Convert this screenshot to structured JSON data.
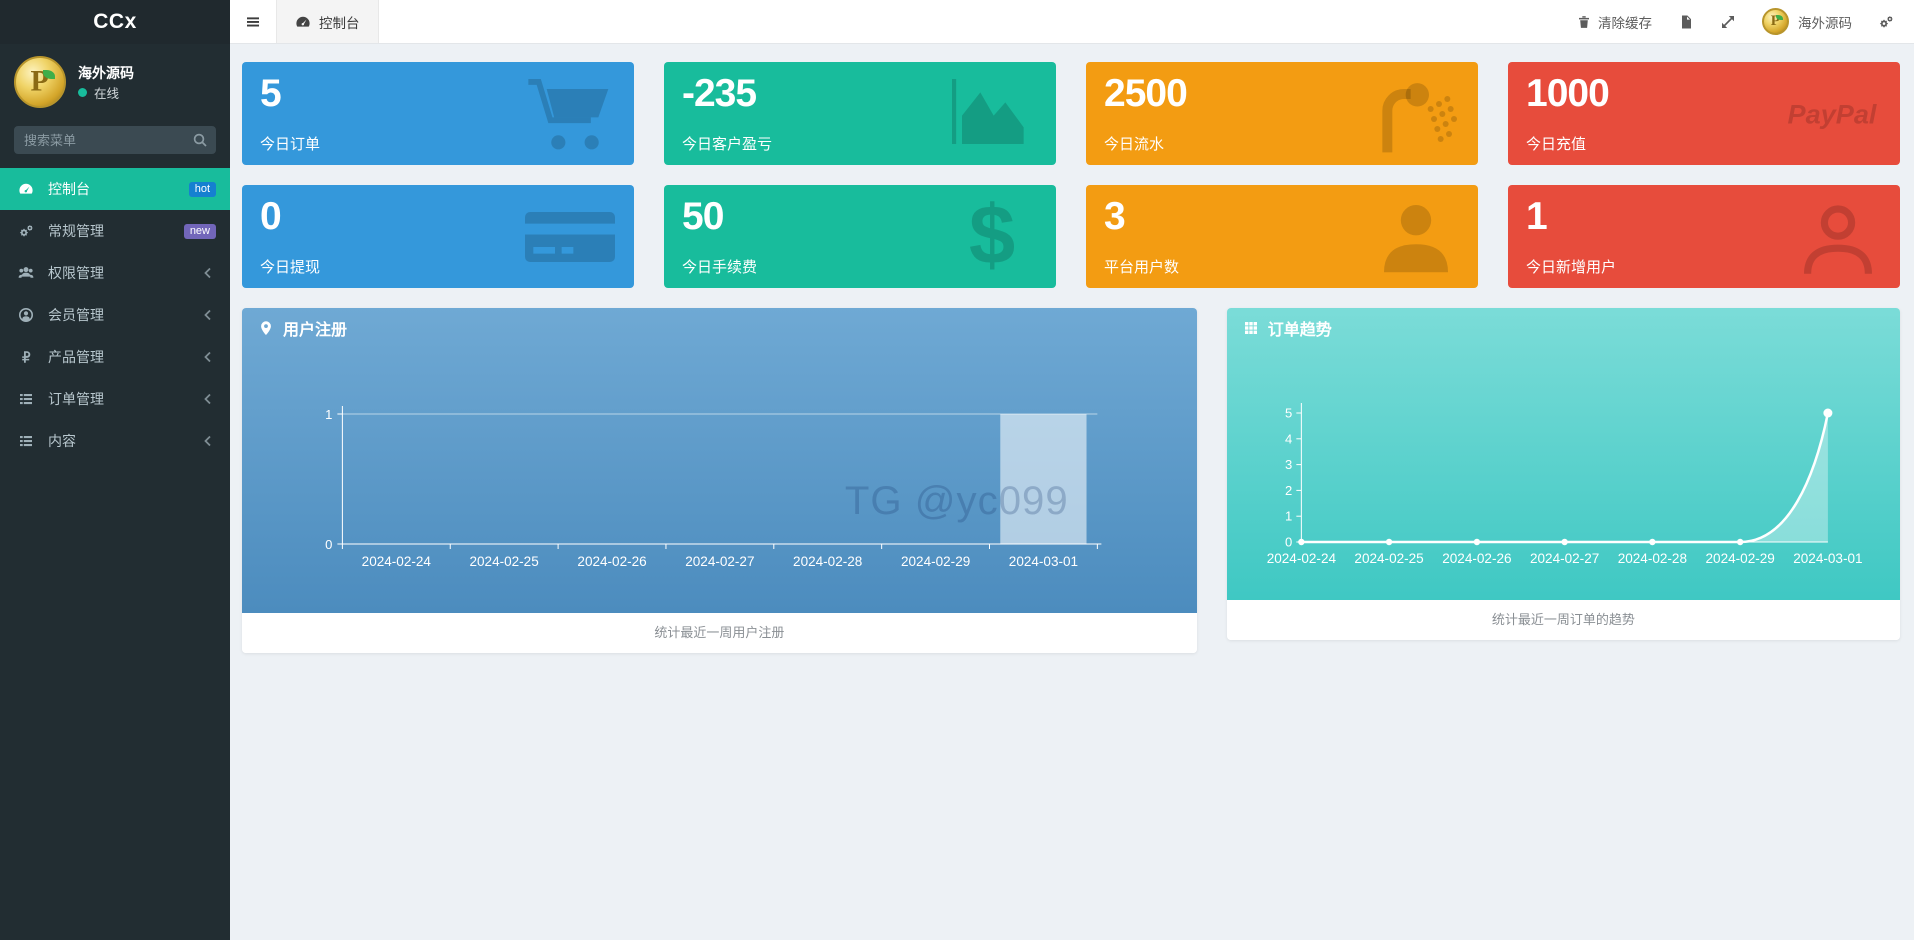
{
  "app": {
    "logo": "CCx"
  },
  "user": {
    "name": "海外源码",
    "status": "在线",
    "status_color": "#18bc9c"
  },
  "search": {
    "placeholder": "搜索菜单"
  },
  "sidebar": {
    "items": [
      {
        "label": "控制台",
        "icon": "gauge-icon",
        "active": true,
        "badge": {
          "text": "hot",
          "color": "#1580d0"
        },
        "chevron": false
      },
      {
        "label": "常规管理",
        "icon": "cogs-icon",
        "active": false,
        "badge": {
          "text": "new",
          "color": "#7266ba"
        },
        "chevron": false
      },
      {
        "label": "权限管理",
        "icon": "users-icon",
        "active": false,
        "badge": null,
        "chevron": true
      },
      {
        "label": "会员管理",
        "icon": "user-circle-icon",
        "active": false,
        "badge": null,
        "chevron": true
      },
      {
        "label": "产品管理",
        "icon": "ruble-icon",
        "active": false,
        "badge": null,
        "chevron": true
      },
      {
        "label": "订单管理",
        "icon": "list-icon",
        "active": false,
        "badge": null,
        "chevron": true
      },
      {
        "label": "内容",
        "icon": "list-icon",
        "active": false,
        "badge": null,
        "chevron": true
      }
    ]
  },
  "topbar": {
    "tab": {
      "label": "控制台",
      "icon": "gauge-icon"
    },
    "clear_cache": "清除缓存",
    "user": "海外源码"
  },
  "stats": [
    {
      "value": "5",
      "label": "今日订单",
      "icon": "cart-icon",
      "color": "#3498db"
    },
    {
      "value": "-235",
      "label": "今日客户盈亏",
      "icon": "area-chart-icon",
      "color": "#18bc9c"
    },
    {
      "value": "2500",
      "label": "今日流水",
      "icon": "shower-icon",
      "color": "#f39c12"
    },
    {
      "value": "1000",
      "label": "今日充值",
      "icon": "paypal-icon",
      "color": "#e74c3c"
    },
    {
      "value": "0",
      "label": "今日提现",
      "icon": "credit-card-icon",
      "color": "#3498db"
    },
    {
      "value": "50",
      "label": "今日手续费",
      "icon": "dollar-icon",
      "color": "#18bc9c"
    },
    {
      "value": "3",
      "label": "平台用户数",
      "icon": "user-filled-icon",
      "color": "#f39c12"
    },
    {
      "value": "1",
      "label": "今日新增用户",
      "icon": "user-outline-icon",
      "color": "#e74c3c"
    }
  ],
  "chart_data": [
    {
      "type": "bar",
      "title": "用户注册",
      "header_icon": "map-marker-icon",
      "categories": [
        "2024-02-24",
        "2024-02-25",
        "2024-02-26",
        "2024-02-27",
        "2024-02-28",
        "2024-02-29",
        "2024-03-01"
      ],
      "values": [
        0,
        0,
        0,
        0,
        0,
        0,
        1
      ],
      "ylim": [
        0,
        1
      ],
      "yticks": [
        0,
        1
      ],
      "footer": "统计最近一周用户注册",
      "watermark": "TG @yc099",
      "colors": {
        "panel_top": "#6fa9d4",
        "panel_bottom": "#4c8cbe",
        "bar": "rgba(255,255,255,0.55)",
        "watermark": "rgba(25,55,110,0.25)"
      }
    },
    {
      "type": "line",
      "title": "订单趋势",
      "header_icon": "grid-icon",
      "categories": [
        "2024-02-24",
        "2024-02-25",
        "2024-02-26",
        "2024-02-27",
        "2024-02-28",
        "2024-02-29",
        "2024-03-01"
      ],
      "values": [
        0,
        0,
        0,
        0,
        0,
        0,
        5
      ],
      "ylim": [
        0,
        5
      ],
      "yticks": [
        0,
        1,
        2,
        3,
        4,
        5
      ],
      "footer": "统计最近一周订单的趋势",
      "colors": {
        "panel_top": "#7bdcd8",
        "panel_bottom": "#3fc8c3",
        "line": "#ffffff",
        "area": "rgba(255,255,255,0.35)"
      }
    }
  ]
}
